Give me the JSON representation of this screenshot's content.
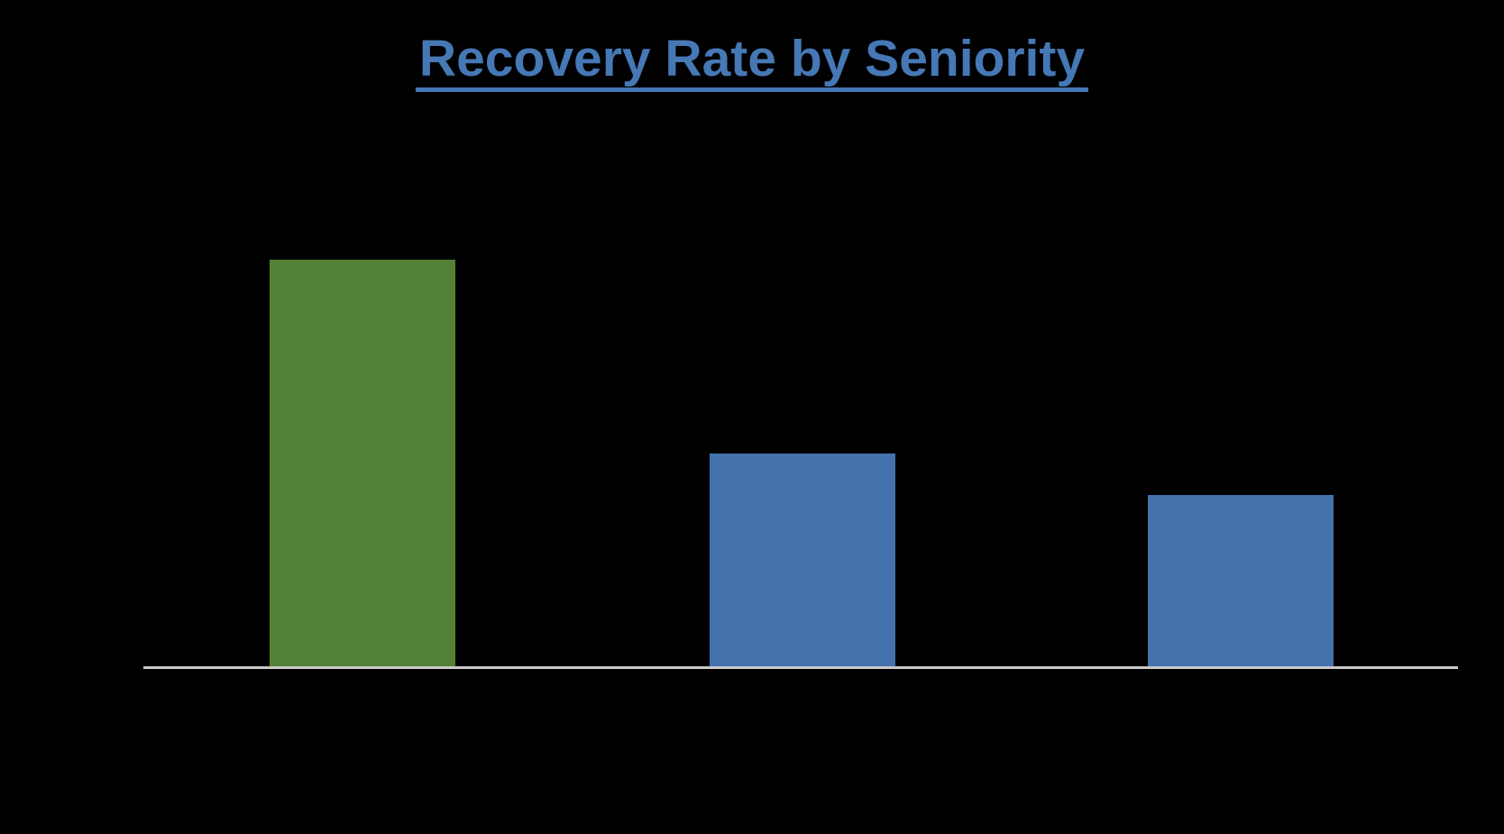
{
  "page": {
    "background_color": "#000000"
  },
  "chart": {
    "title": "Recovery Rate by Seniority",
    "title_color": "#4678B6",
    "title_underlined": true,
    "axis_line_color": "#C9C9C9",
    "default_bar_color": "#4472AC",
    "highlight_bar_color": "#538135",
    "bar_colors": [
      "#538135",
      "#4472AC",
      "#4472AC"
    ]
  },
  "chart_data": {
    "type": "bar",
    "title": "Recovery Rate by Seniority",
    "categories": [
      "",
      "",
      ""
    ],
    "values": [
      100,
      52.3,
      42.1
    ],
    "units": "relative bar height, tallest bar = 100 (no axis tick labels or data labels are visible in the image)",
    "xlabel": "",
    "ylabel": "",
    "legend": false,
    "grid": false,
    "bar_color_names": [
      "green",
      "blue",
      "blue"
    ],
    "layout_hints": "single horizontal baseline axis at bottom, no y-axis line, title centered top with underline"
  }
}
